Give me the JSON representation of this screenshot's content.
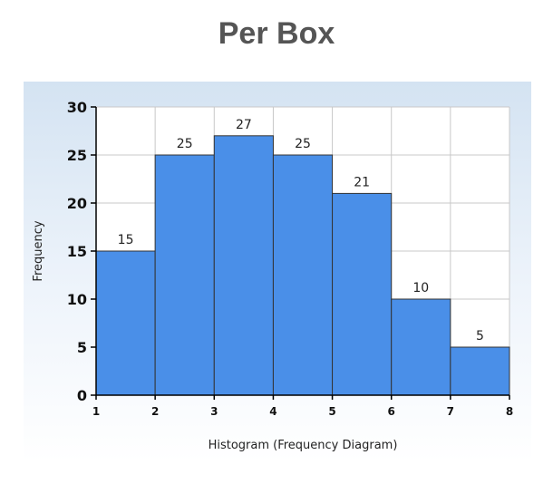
{
  "page": {
    "title": "Per Box"
  },
  "chart_data": {
    "type": "bar",
    "title": "Per Box",
    "xlabel": "Histogram (Frequency Diagram)",
    "ylabel": "Frequency",
    "bins": [
      {
        "start": 1,
        "end": 2,
        "value": 15
      },
      {
        "start": 2,
        "end": 3,
        "value": 25
      },
      {
        "start": 3,
        "end": 4,
        "value": 27
      },
      {
        "start": 4,
        "end": 5,
        "value": 25
      },
      {
        "start": 5,
        "end": 6,
        "value": 21
      },
      {
        "start": 6,
        "end": 7,
        "value": 10
      },
      {
        "start": 7,
        "end": 8,
        "value": 5
      }
    ],
    "xlim": [
      1,
      8
    ],
    "ylim": [
      0,
      30
    ],
    "x_ticks": [
      1,
      2,
      3,
      4,
      5,
      6,
      7,
      8
    ],
    "y_ticks": [
      0,
      5,
      10,
      15,
      20,
      25,
      30
    ],
    "grid": true,
    "legend": "none",
    "colors": {
      "bar_fill": "#4a8fe8",
      "bar_stroke": "#333333",
      "panel_top": "#d4e3f2",
      "panel_bottom": "#ffffff",
      "grid": "#c8c8c8",
      "axis": "#000000"
    }
  }
}
